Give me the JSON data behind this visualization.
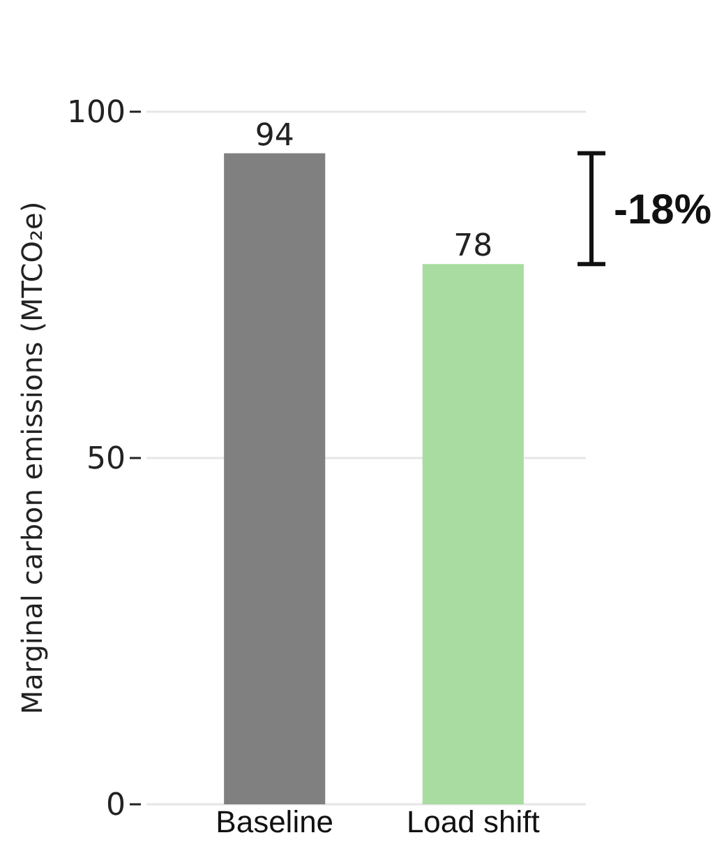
{
  "chart_data": {
    "type": "bar",
    "ylabel": "Marginal carbon emissions (MTCO₂e)",
    "categories": [
      "Baseline",
      "Load shift"
    ],
    "values": [
      94,
      78
    ],
    "colors": [
      "#808080",
      "#a8dca0"
    ],
    "ylim": [
      0,
      100
    ],
    "yticks": [
      0,
      50,
      100
    ],
    "grid": "y",
    "data_labels": true,
    "annotations": [
      "-18%"
    ]
  }
}
